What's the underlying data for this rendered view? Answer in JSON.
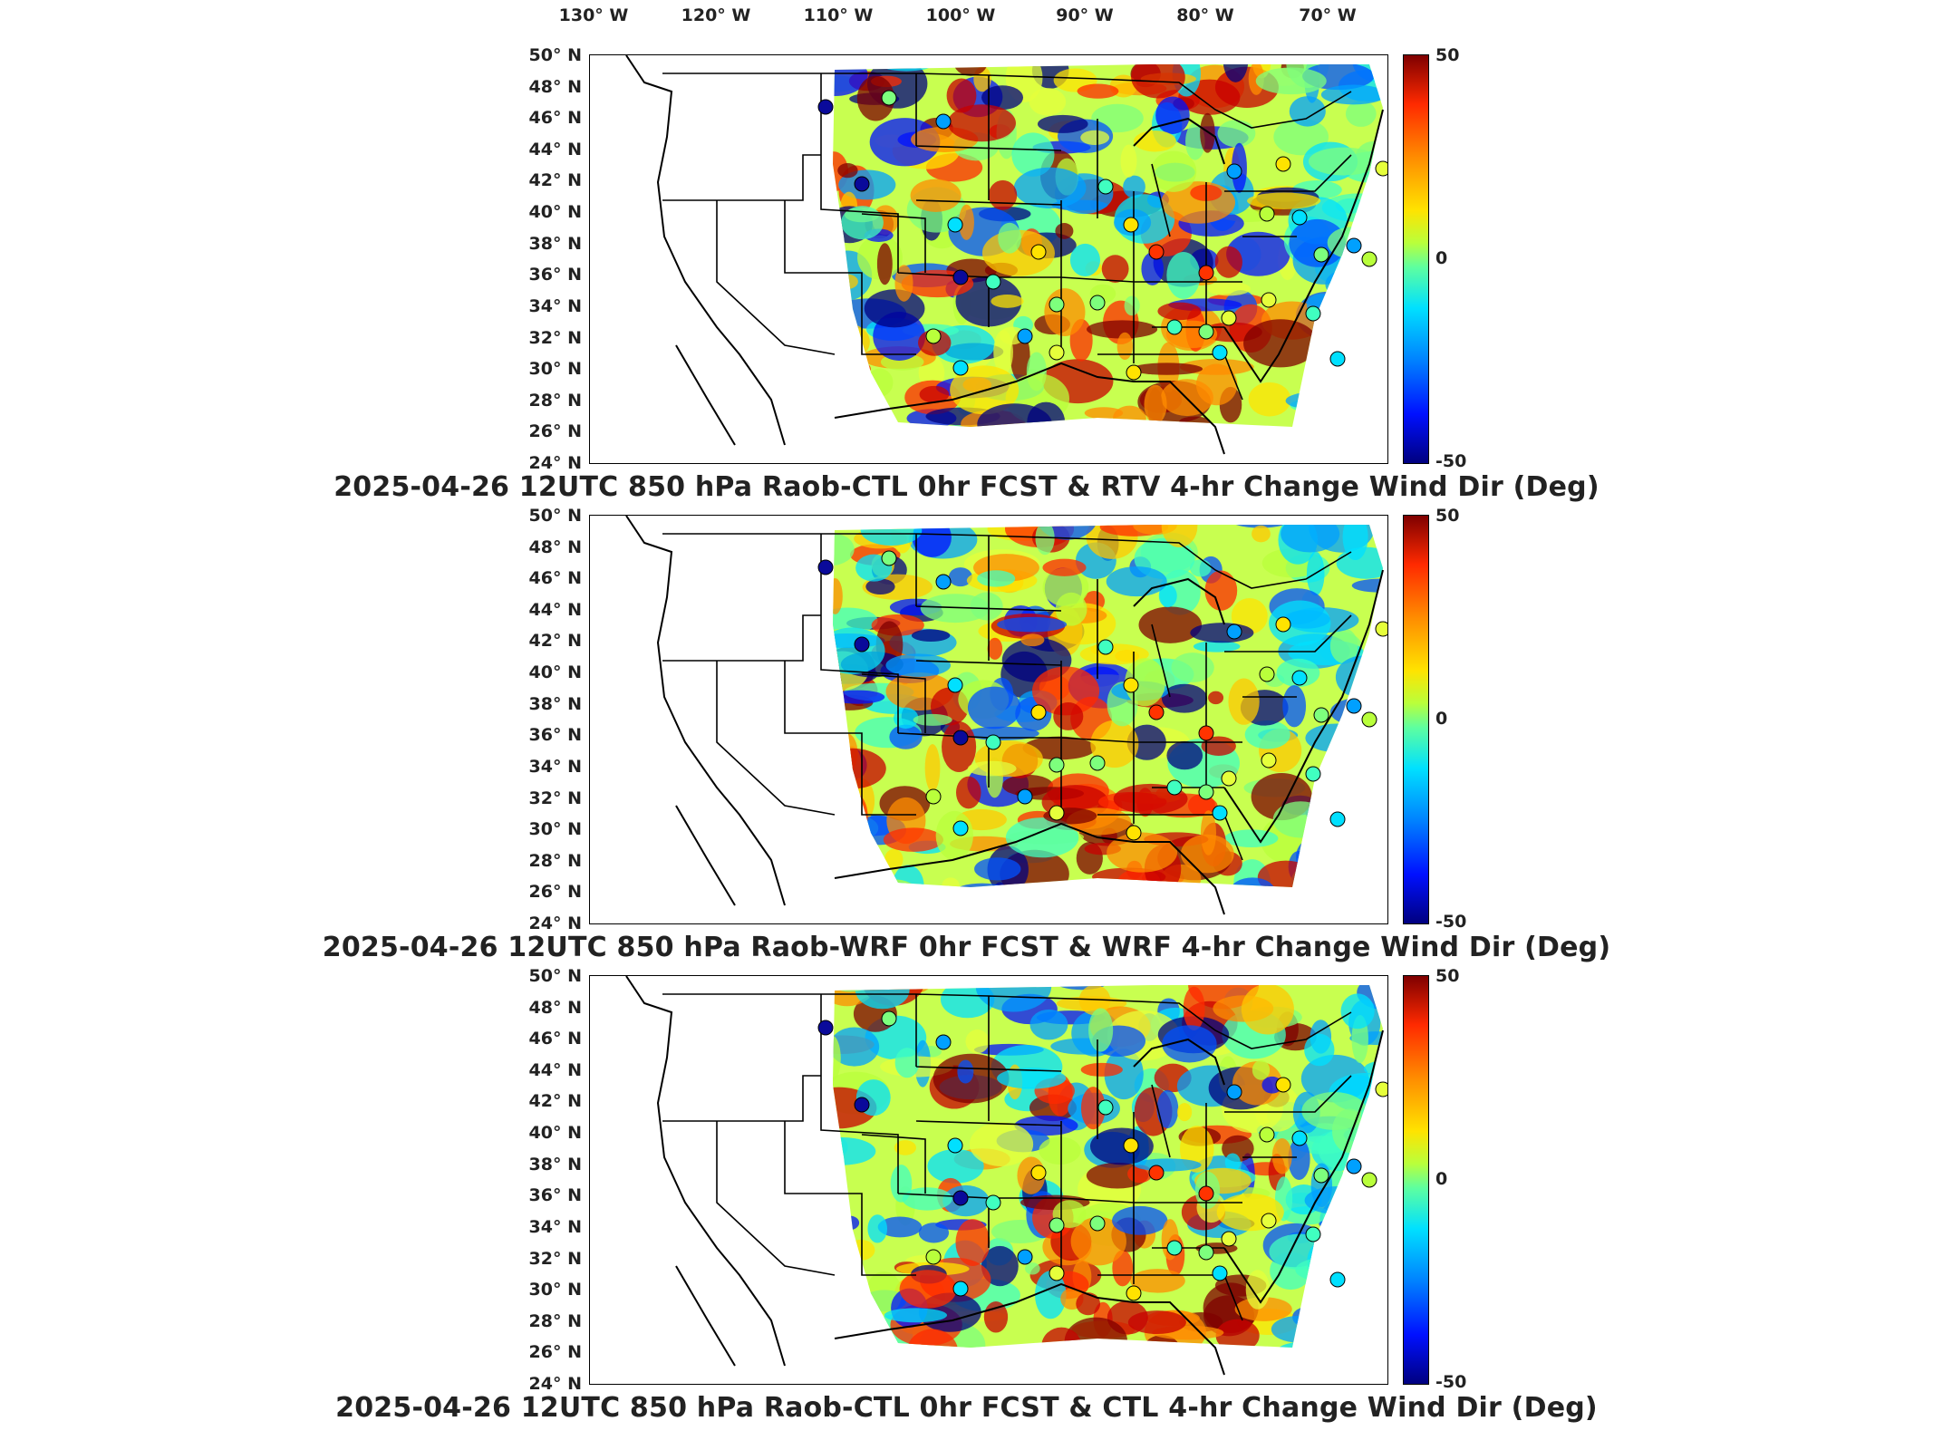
{
  "longitude_labels": [
    "130° W",
    "120° W",
    "110° W",
    "100° W",
    "90° W",
    "80° W",
    "70° W"
  ],
  "latitude_labels": [
    "50° N",
    "48° N",
    "46° N",
    "44° N",
    "42° N",
    "40° N",
    "38° N",
    "36° N",
    "34° N",
    "32° N",
    "30° N",
    "28° N",
    "26° N",
    "24° N"
  ],
  "colorbar": {
    "max_label": "50",
    "mid_label": "0",
    "min_label": "-50"
  },
  "colors": {
    "high": "#7f0000",
    "mid": "#b9ff3b",
    "low": "#00007f"
  },
  "panels": [
    {
      "title": "2025-04-26 12UTC 850 hPa Raob-CTL 0hr FCST & RTV 4-hr Change Wind Dir (Deg)"
    },
    {
      "title": "2025-04-26 12UTC 850 hPa Raob-WRF 0hr FCST & WRF 4-hr Change Wind Dir (Deg)"
    },
    {
      "title": "2025-04-26 12UTC 850 hPa Raob-CTL 0hr FCST & CTL 4-hr Change Wind Dir (Deg)"
    }
  ]
}
